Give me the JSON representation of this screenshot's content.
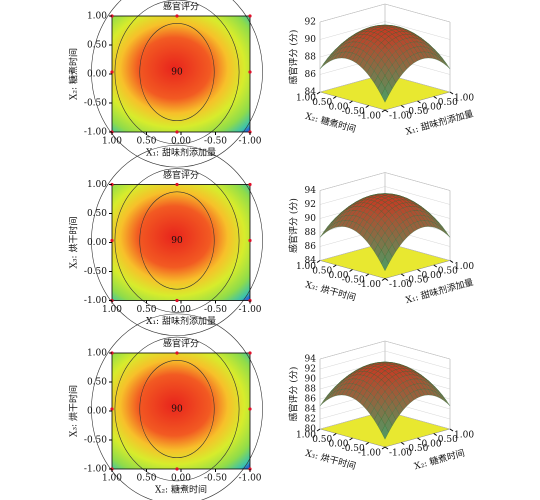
{
  "chart_data": [
    {
      "type": "contour",
      "title": "感官评分",
      "xlabel": "X₁: 甜味剂添加量",
      "ylabel": "X₂: 糖煮时间",
      "contour_label": "90",
      "xlim": [
        1,
        -1
      ],
      "ylim": [
        -1,
        1
      ],
      "xticks": [
        {
          "value": 1,
          "label": "1.00"
        },
        {
          "value": 0.5,
          "label": "0.50"
        },
        {
          "value": 0,
          "label": "0.00"
        },
        {
          "value": -0.5,
          "label": "-0.50"
        },
        {
          "value": -1,
          "label": "-1.00"
        }
      ],
      "yticks": [
        {
          "value": -1,
          "label": "-1.00"
        },
        {
          "value": -0.5,
          "label": "-0.50"
        },
        {
          "value": 0,
          "label": "0.00"
        },
        {
          "value": 0.5,
          "label": "0.50"
        },
        {
          "value": 1,
          "label": "1.00"
        }
      ]
    },
    {
      "type": "surface",
      "zlabel": "感官评分 (分)",
      "xlabel": "X₁: 甜味剂添加量",
      "ylabel": "X₂: 糖煮时间",
      "zlim": [
        84,
        92
      ],
      "zticks": [
        84,
        86,
        88,
        90,
        92
      ],
      "xlim": [
        -1,
        1
      ],
      "ylim": [
        -1,
        1
      ],
      "xticks": [
        {
          "value": -1,
          "label": "-1.00"
        },
        {
          "value": -0.5,
          "label": "-0.50"
        },
        {
          "value": 0,
          "label": "0.00"
        },
        {
          "value": 0.5,
          "label": "0.50"
        },
        {
          "value": 1,
          "label": "1.00"
        }
      ],
      "yticks": [
        {
          "value": 1,
          "label": "1.00"
        },
        {
          "value": 0.5,
          "label": "0.50"
        },
        {
          "value": 0,
          "label": "0.00"
        },
        {
          "value": -0.5,
          "label": "-0.50"
        },
        {
          "value": -1,
          "label": "-1.00"
        }
      ]
    },
    {
      "type": "contour",
      "title": "感官评分",
      "xlabel": "X₁: 甜味剂添加量",
      "ylabel": "X₃: 烘干时间",
      "contour_label": "90",
      "xlim": [
        1,
        -1
      ],
      "ylim": [
        -1,
        1
      ],
      "xticks": [
        {
          "value": 1,
          "label": "1.00"
        },
        {
          "value": 0.5,
          "label": "0.50"
        },
        {
          "value": 0,
          "label": "0.00"
        },
        {
          "value": -0.5,
          "label": "-0.50"
        },
        {
          "value": -1,
          "label": "-1.00"
        }
      ],
      "yticks": [
        {
          "value": -1,
          "label": "-1.00"
        },
        {
          "value": -0.5,
          "label": "-0.50"
        },
        {
          "value": 0,
          "label": "0.00"
        },
        {
          "value": 0.5,
          "label": "0.50"
        },
        {
          "value": 1,
          "label": "1.00"
        }
      ]
    },
    {
      "type": "surface",
      "zlabel": "感官评分 (分)",
      "xlabel": "X₁: 甜味剂添加量",
      "ylabel": "X₃: 烘干时间",
      "zlim": [
        84,
        94
      ],
      "zticks": [
        84,
        86,
        88,
        90,
        92,
        94
      ],
      "xlim": [
        -1,
        1
      ],
      "ylim": [
        -1,
        1
      ],
      "xticks": [
        {
          "value": -1,
          "label": "-1.00"
        },
        {
          "value": -0.5,
          "label": "-0.50"
        },
        {
          "value": 0,
          "label": "0.00"
        },
        {
          "value": 0.5,
          "label": "0.50"
        },
        {
          "value": 1,
          "label": "1.00"
        }
      ],
      "yticks": [
        {
          "value": 1,
          "label": "1.00"
        },
        {
          "value": 0.5,
          "label": "0.50"
        },
        {
          "value": 0,
          "label": "0.00"
        },
        {
          "value": -0.5,
          "label": "-0.50"
        },
        {
          "value": -1,
          "label": "-1.00"
        }
      ]
    },
    {
      "type": "contour",
      "title": "感官评分",
      "xlabel": "X₂: 糖煮时间",
      "ylabel": "X₃: 烘干时间",
      "contour_label": "90",
      "xlim": [
        1,
        -1
      ],
      "ylim": [
        -1,
        1
      ],
      "xticks": [
        {
          "value": 1,
          "label": "1.00"
        },
        {
          "value": 0.5,
          "label": "0.50"
        },
        {
          "value": 0,
          "label": "0.00"
        },
        {
          "value": -0.5,
          "label": "-0.50"
        },
        {
          "value": -1,
          "label": "-1.00"
        }
      ],
      "yticks": [
        {
          "value": -1,
          "label": "-1.00"
        },
        {
          "value": -0.5,
          "label": "-0.50"
        },
        {
          "value": 0,
          "label": "0.00"
        },
        {
          "value": 0.5,
          "label": "0.50"
        },
        {
          "value": 1,
          "label": "1.00"
        }
      ]
    },
    {
      "type": "surface",
      "zlabel": "感官评分 (分)",
      "xlabel": "X₂: 糖煮时间",
      "ylabel": "X₃: 烘干时间",
      "zlim": [
        80,
        94
      ],
      "zticks": [
        80,
        82,
        84,
        86,
        88,
        90,
        92,
        94
      ],
      "xlim": [
        -1,
        1
      ],
      "ylim": [
        -1,
        1
      ],
      "xticks": [
        {
          "value": -1,
          "label": "-1.00"
        },
        {
          "value": -0.5,
          "label": "-0.50"
        },
        {
          "value": 0,
          "label": "0.00"
        },
        {
          "value": 0.5,
          "label": "0.50"
        },
        {
          "value": 1,
          "label": "1.00"
        }
      ],
      "yticks": [
        {
          "value": 1,
          "label": "1.00"
        },
        {
          "value": 0.5,
          "label": "0.50"
        },
        {
          "value": 0,
          "label": "0.00"
        },
        {
          "value": -0.5,
          "label": "-0.50"
        },
        {
          "value": -1,
          "label": "-1.00"
        }
      ]
    }
  ]
}
